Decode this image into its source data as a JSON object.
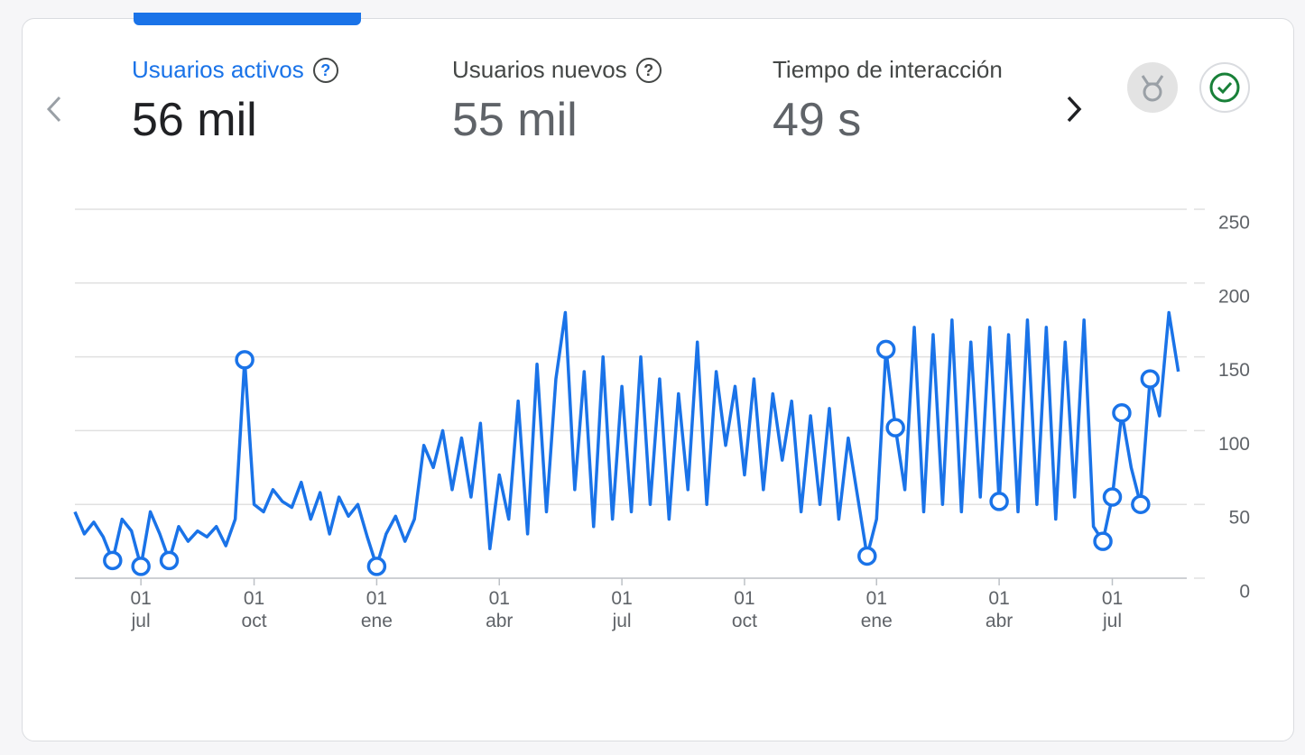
{
  "metrics": [
    {
      "label": "Usuarios activos",
      "value": "56 mil"
    },
    {
      "label": "Usuarios nuevos",
      "value": "55 mil"
    },
    {
      "label": "Tiempo de interacción",
      "value": "49 s"
    }
  ],
  "chart_data": {
    "type": "line",
    "categories": [
      null,
      null,
      null,
      null,
      null,
      null,
      null,
      "01 jul",
      null,
      null,
      null,
      null,
      null,
      null,
      null,
      null,
      null,
      null,
      null,
      "01 oct",
      null,
      null,
      null,
      null,
      null,
      null,
      null,
      null,
      null,
      null,
      null,
      null,
      "01 ene",
      null,
      null,
      null,
      null,
      null,
      null,
      null,
      null,
      null,
      null,
      null,
      null,
      "01 abr",
      null,
      null,
      null,
      null,
      null,
      null,
      null,
      null,
      null,
      null,
      null,
      null,
      "01 jul",
      null,
      null,
      null,
      null,
      null,
      null,
      null,
      null,
      null,
      null,
      null,
      null,
      "01 oct",
      null,
      null,
      null,
      null,
      null,
      null,
      null,
      null,
      null,
      null,
      null,
      null,
      null,
      "01 ene",
      null,
      null,
      null,
      null,
      null,
      null,
      null,
      null,
      null,
      null,
      null,
      null,
      "01 abr",
      null,
      null,
      null,
      null,
      null,
      null,
      null,
      null,
      null,
      null,
      null,
      "01 jul",
      null,
      null,
      null,
      null,
      null,
      null,
      null
    ],
    "series": [
      {
        "color": "#1a73e8",
        "values": [
          45,
          30,
          38,
          28,
          12,
          40,
          32,
          8,
          45,
          30,
          12,
          35,
          25,
          32,
          28,
          35,
          22,
          40,
          148,
          50,
          45,
          60,
          52,
          48,
          65,
          40,
          58,
          30,
          55,
          42,
          50,
          28,
          8,
          30,
          42,
          25,
          40,
          90,
          75,
          100,
          60,
          95,
          55,
          105,
          20,
          70,
          40,
          120,
          30,
          145,
          45,
          135,
          180,
          60,
          140,
          35,
          150,
          40,
          130,
          45,
          150,
          50,
          135,
          40,
          125,
          60,
          160,
          50,
          140,
          90,
          130,
          70,
          135,
          60,
          125,
          80,
          120,
          45,
          110,
          50,
          115,
          40,
          95,
          55,
          15,
          40,
          155,
          102,
          60,
          170,
          45,
          165,
          50,
          175,
          45,
          160,
          55,
          170,
          52,
          165,
          45,
          175,
          50,
          170,
          40,
          160,
          55,
          175,
          35,
          25,
          55,
          112,
          75,
          50,
          135,
          110,
          180,
          140
        ]
      },
      {
        "color": "#1a73e8",
        "marker": true,
        "values": [
          null,
          null,
          null,
          null,
          12,
          null,
          null,
          8,
          null,
          null,
          12,
          null,
          null,
          null,
          null,
          null,
          null,
          null,
          148,
          null,
          null,
          null,
          null,
          null,
          null,
          null,
          null,
          null,
          null,
          null,
          null,
          null,
          8,
          null,
          null,
          null,
          null,
          null,
          null,
          null,
          null,
          null,
          null,
          null,
          null,
          null,
          null,
          null,
          null,
          null,
          null,
          null,
          null,
          null,
          null,
          null,
          null,
          null,
          null,
          null,
          null,
          null,
          null,
          null,
          null,
          null,
          null,
          null,
          null,
          null,
          null,
          null,
          null,
          null,
          null,
          null,
          null,
          null,
          null,
          null,
          null,
          null,
          null,
          null,
          15,
          null,
          155,
          102,
          null,
          null,
          null,
          null,
          null,
          null,
          null,
          null,
          null,
          null,
          52,
          null,
          null,
          null,
          null,
          null,
          null,
          null,
          null,
          null,
          null,
          25,
          55,
          112,
          null,
          50,
          135,
          null,
          null,
          null
        ]
      }
    ],
    "ylim": [
      0,
      250
    ],
    "yticks": [
      0,
      50,
      100,
      150,
      200,
      250
    ],
    "grid": true
  }
}
